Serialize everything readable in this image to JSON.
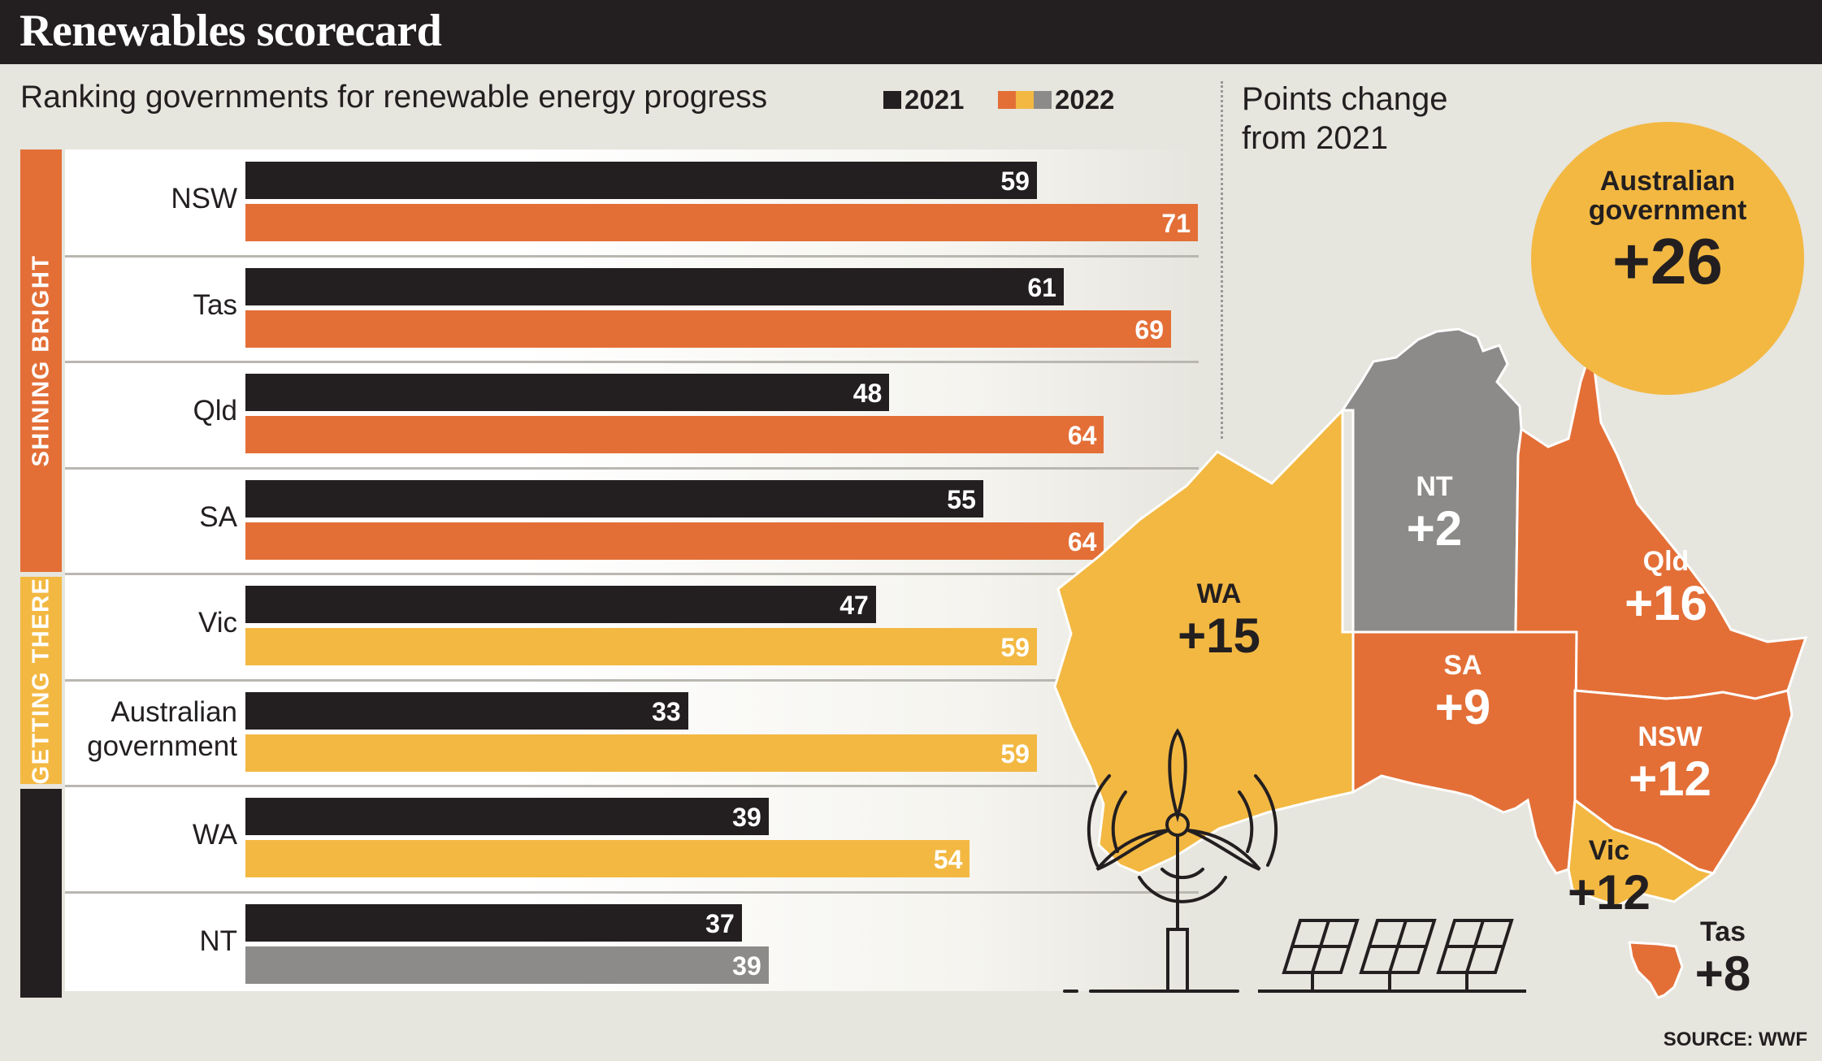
{
  "header": {
    "title": "Renewables scorecard"
  },
  "subtitle": "Ranking governments for renewable energy progress",
  "legend": [
    {
      "label": "2021",
      "colors": [
        "#231f20"
      ]
    },
    {
      "label": "2022",
      "colors": [
        "#e36f37",
        "#f3b842",
        "#8c8b89"
      ]
    }
  ],
  "colors": {
    "shining_bright": "#e36f37",
    "getting_there": "#f3b842",
    "lagging": "#8c8b89",
    "year_2021": "#231f20"
  },
  "groups": [
    {
      "label": "SHINING BRIGHT",
      "color": "#e36f37"
    },
    {
      "label": "GETTING THERE",
      "color": "#f3b842"
    },
    {
      "label": "",
      "color": "#231f20"
    }
  ],
  "chart_data": {
    "type": "bar",
    "orientation": "horizontal",
    "categories": [
      "NSW",
      "Tas",
      "Qld",
      "SA",
      "Vic",
      "Australian\ngovernment",
      "WA",
      "NT"
    ],
    "category_group": [
      0,
      0,
      0,
      0,
      1,
      1,
      2,
      2
    ],
    "series": [
      {
        "name": "2021",
        "values": [
          59,
          61,
          48,
          55,
          47,
          33,
          39,
          37
        ]
      },
      {
        "name": "2022",
        "values": [
          71,
          69,
          64,
          64,
          59,
          59,
          54,
          39
        ]
      }
    ],
    "bar_2022_colors": [
      "#e36f37",
      "#e36f37",
      "#e36f37",
      "#e36f37",
      "#f3b842",
      "#f3b842",
      "#f3b842",
      "#8c8b89"
    ],
    "xlim": [
      0,
      71
    ],
    "title": "Ranking governments for renewable energy progress",
    "legend": "top-right",
    "grid": false
  },
  "map": {
    "heading": "Points change\nfrom 2021",
    "regions": [
      {
        "name": "Australian\ngovernment",
        "change": "+26"
      },
      {
        "name": "NT",
        "change": "+2"
      },
      {
        "name": "WA",
        "change": "+15"
      },
      {
        "name": "Qld",
        "change": "+16"
      },
      {
        "name": "SA",
        "change": "+9"
      },
      {
        "name": "NSW",
        "change": "+12"
      },
      {
        "name": "Vic",
        "change": "+12"
      },
      {
        "name": "Tas",
        "change": "+8"
      }
    ],
    "icons": [
      "wind-turbine-icon",
      "solar-panel-icon"
    ]
  },
  "source": "SOURCE: WWF"
}
